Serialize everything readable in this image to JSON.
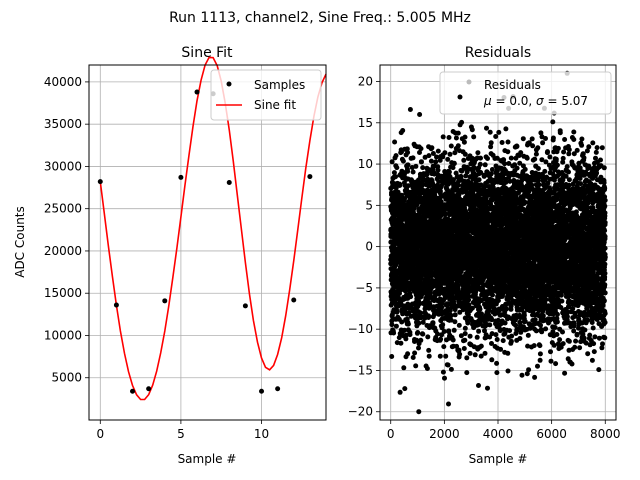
{
  "figure": {
    "suptitle": "Run 1113, channel2, Sine Freq.: 5.005 MHz"
  },
  "chart_data": [
    {
      "type": "line",
      "title": "Sine Fit",
      "xlabel": "Sample #",
      "ylabel": "ADC Counts",
      "xlim": [
        -0.7,
        14.0
      ],
      "ylim": [
        0,
        42000
      ],
      "xticks": [
        0,
        5,
        10
      ],
      "yticks": [
        5000,
        10000,
        15000,
        20000,
        25000,
        30000,
        35000,
        40000
      ],
      "grid": true,
      "legend_position": "top-right",
      "series": [
        {
          "name": "Samples",
          "kind": "scatter",
          "color": "#000000",
          "x": [
            0,
            1,
            2,
            3,
            4,
            5,
            6,
            7,
            8,
            9,
            10,
            11,
            12,
            13
          ],
          "y": [
            28200,
            13600,
            3400,
            3700,
            14100,
            28700,
            38800,
            38600,
            28100,
            13500,
            3400,
            3700,
            14200,
            28800
          ]
        },
        {
          "name": "Sine fit",
          "kind": "line",
          "color": "#ff0000",
          "x": [
            0.0,
            0.25,
            0.5,
            0.75,
            1.0,
            1.25,
            1.5,
            1.75,
            2.0,
            2.25,
            2.5,
            2.75,
            3.0,
            3.25,
            3.5,
            3.75,
            4.0,
            4.25,
            4.5,
            4.75,
            5.0,
            5.25,
            5.5,
            5.75,
            6.0,
            6.25,
            6.5,
            6.75,
            7.0,
            7.25,
            7.5,
            7.75,
            8.0,
            8.25,
            8.5,
            8.75,
            9.0,
            9.25,
            9.5,
            9.75,
            10.0,
            10.25,
            10.5,
            10.75,
            11.0,
            11.25,
            11.5,
            11.75,
            12.0,
            12.25,
            12.5,
            12.75,
            13.0,
            13.25,
            13.5,
            13.75,
            14.0
          ],
          "y": [
            28180,
            24440,
            20660,
            16990,
            13580,
            10530,
            7880,
            5730,
            4090,
            2980,
            2420,
            2430,
            3000,
            4130,
            5790,
            7940,
            10530,
            13520,
            16820,
            20350,
            24020,
            27730,
            31340,
            34740,
            37760,
            40230,
            42000,
            42900,
            42870,
            41920,
            40100,
            37510,
            34290,
            30600,
            26620,
            22560,
            18610,
            14960,
            11780,
            9200,
            7330,
            6230,
            5940,
            6460,
            7750,
            9740,
            12340,
            15430,
            18880,
            22530,
            26230,
            29800,
            33070,
            35920,
            38230,
            39920,
            40920
          ]
        }
      ]
    },
    {
      "type": "scatter",
      "title": "Residuals",
      "xlabel": "Sample #",
      "xlim": [
        -400,
        8400
      ],
      "ylim": [
        -21,
        22
      ],
      "xticks": [
        0,
        2000,
        4000,
        6000,
        8000
      ],
      "yticks": [
        -20,
        -15,
        -10,
        -5,
        0,
        5,
        10,
        15,
        20
      ],
      "grid": true,
      "legend_position": "top-right",
      "series": [
        {
          "name": "Residuals",
          "color": "#000000",
          "x_range": [
            0,
            8000
          ],
          "n_points": 8000,
          "mean": 0.0,
          "sigma": 5.07
        }
      ],
      "legend_text": {
        "mu_symbol": "μ",
        "sigma_symbol": "σ",
        "line2_mid": " = 0.0, ",
        "line2_end": " = 5.07"
      }
    }
  ]
}
